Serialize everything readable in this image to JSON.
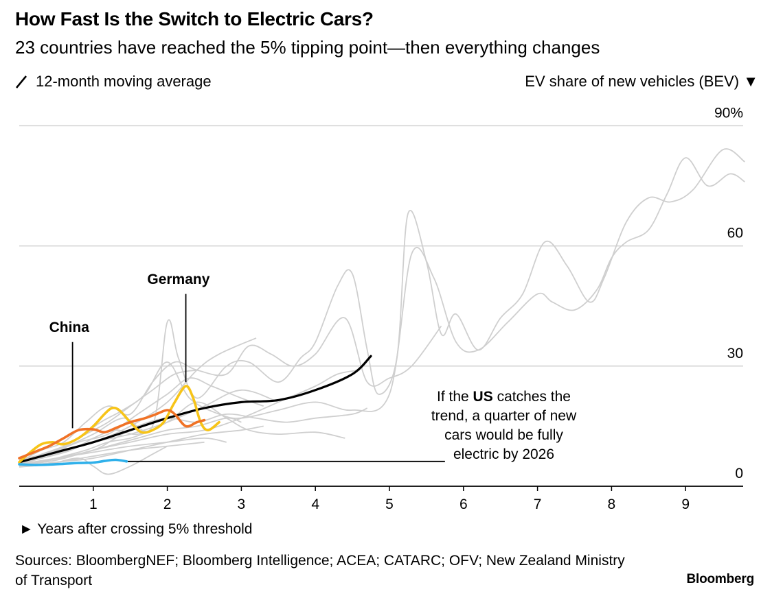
{
  "title": "How Fast Is the Switch to Electric Cars?",
  "subtitle": "23 countries have reached the 5% tipping point—then everything changes",
  "legend_note": "12-month moving average",
  "sources": "Sources: BloombergNEF; Bloomberg Intelligence; ACEA; CATARC; OFV; New Zealand Ministry of Transport",
  "brand": "Bloomberg",
  "annotation": {
    "line1_pre": "If the ",
    "line1_bold": "US",
    "line1_post": " catches the",
    "line2": "trend, a quarter of new",
    "line3": "cars would be fully",
    "line4": "electric by 2026"
  },
  "colors": {
    "background": "#ffffff",
    "grid": "#d0d0d0",
    "other_countries": "#cfcfcf",
    "average": "#000000",
    "china": "#f07226",
    "germany": "#f7c418",
    "us": "#2fb0ea"
  },
  "chart_data": {
    "type": "line",
    "title": "How Fast Is the Switch to Electric Cars?",
    "subtitle": "23 countries have reached the 5% tipping point—then everything changes",
    "xlabel": "► Years after crossing 5% threshold",
    "ylabel": "EV share of new vehicles (BEV) ▼",
    "xlim": [
      0,
      9.8
    ],
    "ylim": [
      0,
      90
    ],
    "x_ticks": [
      1,
      2,
      3,
      4,
      5,
      6,
      7,
      8,
      9
    ],
    "y_ticks": [
      {
        "value": 90,
        "label": "90%"
      },
      {
        "value": 60,
        "label": "60"
      },
      {
        "value": 30,
        "label": "30"
      },
      {
        "value": 0,
        "label": "0"
      }
    ],
    "grid": "horizontal",
    "series": [
      {
        "name": "China",
        "role": "highlight",
        "color": "#f07226",
        "label_pos": [
          0.72,
          39.5
        ],
        "leader_from": [
          0.72,
          36
        ],
        "leader_to": [
          0.72,
          14.5
        ],
        "points": [
          [
            0,
            7
          ],
          [
            0.2,
            8.5
          ],
          [
            0.4,
            10
          ],
          [
            0.6,
            12
          ],
          [
            0.8,
            14
          ],
          [
            1,
            14.2
          ],
          [
            1.15,
            13.5
          ],
          [
            1.3,
            14.5
          ],
          [
            1.5,
            16
          ],
          [
            1.7,
            17
          ],
          [
            1.85,
            18
          ],
          [
            2,
            19
          ],
          [
            2.1,
            18
          ],
          [
            2.25,
            15
          ],
          [
            2.4,
            16
          ],
          [
            2.5,
            16.5
          ]
        ]
      },
      {
        "name": "Germany",
        "role": "highlight",
        "color": "#f7c418",
        "label_pos": [
          2.1,
          51.5
        ],
        "leader_from": [
          2.25,
          48
        ],
        "leader_to": [
          2.25,
          26
        ],
        "points": [
          [
            0,
            6
          ],
          [
            0.15,
            8.5
          ],
          [
            0.3,
            10.5
          ],
          [
            0.45,
            11
          ],
          [
            0.6,
            10.5
          ],
          [
            0.8,
            12
          ],
          [
            1,
            15
          ],
          [
            1.15,
            18
          ],
          [
            1.25,
            19.5
          ],
          [
            1.35,
            19
          ],
          [
            1.5,
            16
          ],
          [
            1.65,
            13.5
          ],
          [
            1.8,
            14
          ],
          [
            1.95,
            16
          ],
          [
            2.1,
            21
          ],
          [
            2.25,
            25
          ],
          [
            2.35,
            22
          ],
          [
            2.45,
            16
          ],
          [
            2.55,
            14
          ],
          [
            2.7,
            16
          ]
        ]
      },
      {
        "name": "US",
        "role": "highlight",
        "color": "#2fb0ea",
        "leader_from": [
          1.45,
          6.2
        ],
        "leader_to": [
          5.75,
          6.2
        ],
        "points": [
          [
            0,
            5.5
          ],
          [
            0.2,
            5.3
          ],
          [
            0.4,
            5.4
          ],
          [
            0.6,
            5.6
          ],
          [
            0.8,
            5.8
          ],
          [
            1,
            5.9
          ],
          [
            1.15,
            6.3
          ],
          [
            1.3,
            6.6
          ],
          [
            1.45,
            6.2
          ]
        ]
      },
      {
        "name": "Average",
        "role": "average",
        "color": "#000000",
        "points": [
          [
            0,
            6
          ],
          [
            0.5,
            8.5
          ],
          [
            1,
            11
          ],
          [
            1.5,
            14
          ],
          [
            2,
            17
          ],
          [
            2.5,
            19.5
          ],
          [
            3,
            21
          ],
          [
            3.5,
            21.5
          ],
          [
            4,
            24
          ],
          [
            4.5,
            28
          ],
          [
            4.75,
            32.5
          ]
        ]
      },
      {
        "role": "other",
        "points": [
          [
            0,
            5.5
          ],
          [
            0.5,
            8.5
          ],
          [
            1,
            11
          ],
          [
            1.5,
            15
          ],
          [
            2,
            21
          ],
          [
            2.4,
            29
          ],
          [
            2.7,
            33
          ],
          [
            3.2,
            37
          ]
        ]
      },
      {
        "role": "other",
        "points": [
          [
            0,
            6
          ],
          [
            0.3,
            9
          ],
          [
            0.6,
            11
          ],
          [
            0.9,
            16
          ],
          [
            1.2,
            20
          ],
          [
            1.5,
            18
          ],
          [
            1.8,
            26
          ],
          [
            2.1,
            31
          ],
          [
            2.4,
            29
          ],
          [
            2.8,
            28
          ],
          [
            3.1,
            35
          ],
          [
            3.4,
            33
          ],
          [
            3.7,
            30
          ],
          [
            4,
            33
          ],
          [
            4.4,
            42
          ],
          [
            4.7,
            26
          ],
          [
            5,
            27
          ],
          [
            5.3,
            30
          ],
          [
            5.7,
            40
          ]
        ]
      },
      {
        "role": "other",
        "points": [
          [
            0,
            5.5
          ],
          [
            0.4,
            8
          ],
          [
            0.8,
            12
          ],
          [
            1.1,
            16
          ],
          [
            1.4,
            19
          ],
          [
            1.7,
            23
          ],
          [
            2,
            31
          ],
          [
            2.3,
            22
          ],
          [
            2.7,
            18
          ],
          [
            3,
            17
          ],
          [
            3.5,
            19
          ],
          [
            4,
            21
          ],
          [
            4.5,
            19
          ],
          [
            5,
            23
          ],
          [
            5.3,
            58
          ],
          [
            5.6,
            52
          ],
          [
            5.9,
            36
          ],
          [
            6.2,
            34
          ],
          [
            6.6,
            41
          ],
          [
            7,
            48
          ],
          [
            7.2,
            46
          ],
          [
            7.5,
            44
          ],
          [
            7.8,
            49
          ],
          [
            8,
            57
          ],
          [
            8.2,
            61
          ],
          [
            8.5,
            64
          ],
          [
            8.75,
            73
          ],
          [
            9,
            82
          ],
          [
            9.3,
            75
          ],
          [
            9.6,
            78
          ],
          [
            9.8,
            76
          ]
        ]
      },
      {
        "role": "other",
        "points": [
          [
            0,
            6.5
          ],
          [
            0.5,
            9
          ],
          [
            1,
            13
          ],
          [
            1.4,
            17
          ],
          [
            1.8,
            15
          ],
          [
            2,
            41
          ],
          [
            2.15,
            32
          ],
          [
            2.4,
            22
          ],
          [
            2.8,
            30
          ],
          [
            3.1,
            31
          ],
          [
            3.5,
            26
          ],
          [
            3.8,
            32
          ],
          [
            4,
            36
          ],
          [
            4.3,
            50
          ],
          [
            4.5,
            53
          ],
          [
            4.7,
            34
          ],
          [
            4.85,
            23
          ],
          [
            5.1,
            32
          ],
          [
            5.25,
            68
          ],
          [
            5.5,
            56
          ],
          [
            5.7,
            38
          ],
          [
            5.9,
            43
          ],
          [
            6.2,
            34
          ],
          [
            6.5,
            42
          ],
          [
            6.8,
            48
          ],
          [
            7.1,
            61
          ],
          [
            7.4,
            55
          ],
          [
            7.7,
            46
          ],
          [
            7.9,
            52
          ],
          [
            8.2,
            66
          ],
          [
            8.5,
            72
          ],
          [
            8.8,
            71
          ],
          [
            9.1,
            74
          ],
          [
            9.5,
            84
          ],
          [
            9.8,
            81
          ]
        ]
      },
      {
        "role": "other",
        "points": [
          [
            0,
            5.2
          ],
          [
            0.5,
            7
          ],
          [
            1,
            9
          ],
          [
            1.3,
            12
          ],
          [
            1.6,
            15
          ],
          [
            2,
            17
          ],
          [
            2.4,
            16
          ],
          [
            2.8,
            18
          ],
          [
            3.2,
            17
          ],
          [
            3.6,
            16
          ],
          [
            4,
            17
          ],
          [
            4.5,
            18
          ],
          [
            4.7,
            19.5
          ]
        ]
      },
      {
        "role": "other",
        "points": [
          [
            0,
            5.5
          ],
          [
            0.4,
            6.5
          ],
          [
            0.8,
            8
          ],
          [
            1.2,
            10
          ],
          [
            1.6,
            12
          ],
          [
            2,
            14
          ],
          [
            2.4,
            15
          ],
          [
            2.8,
            17
          ],
          [
            3,
            16
          ]
        ]
      },
      {
        "role": "other",
        "points": [
          [
            0,
            6
          ],
          [
            0.3,
            7
          ],
          [
            0.7,
            9
          ],
          [
            1,
            12
          ],
          [
            1.3,
            14
          ],
          [
            1.6,
            13
          ],
          [
            2,
            16
          ],
          [
            2.4,
            21
          ],
          [
            2.8,
            17
          ],
          [
            3.1,
            14
          ],
          [
            3.5,
            13
          ],
          [
            4,
            13.5
          ],
          [
            4.4,
            12
          ]
        ]
      },
      {
        "role": "other",
        "points": [
          [
            0,
            5.5
          ],
          [
            0.5,
            7
          ],
          [
            1,
            8.5
          ],
          [
            1.5,
            10
          ],
          [
            2,
            11
          ],
          [
            2.5,
            12
          ],
          [
            2.8,
            11
          ]
        ]
      },
      {
        "role": "other",
        "points": [
          [
            0,
            5
          ],
          [
            0.5,
            6
          ],
          [
            1,
            7.5
          ],
          [
            1.5,
            9
          ],
          [
            2,
            10
          ],
          [
            2.5,
            11
          ]
        ]
      },
      {
        "role": "other",
        "points": [
          [
            0,
            6
          ],
          [
            0.4,
            8
          ],
          [
            0.8,
            11
          ],
          [
            1.2,
            13
          ],
          [
            1.6,
            18
          ],
          [
            2,
            23
          ],
          [
            2.3,
            27
          ],
          [
            2.6,
            25
          ],
          [
            3,
            22
          ],
          [
            3.3,
            20
          ]
        ]
      },
      {
        "role": "other",
        "points": [
          [
            0,
            5.5
          ],
          [
            0.5,
            8
          ],
          [
            1,
            11
          ],
          [
            1.5,
            13
          ],
          [
            2,
            16
          ],
          [
            2.5,
            20
          ],
          [
            3,
            24
          ],
          [
            3.5,
            21
          ]
        ]
      },
      {
        "role": "other",
        "points": [
          [
            0,
            5
          ],
          [
            0.3,
            6
          ],
          [
            0.6,
            7.5
          ],
          [
            0.9,
            9
          ],
          [
            1.2,
            11
          ],
          [
            1.5,
            12
          ],
          [
            1.8,
            14
          ]
        ]
      },
      {
        "role": "other",
        "points": [
          [
            0,
            4.8
          ],
          [
            0.4,
            5.5
          ],
          [
            0.8,
            7
          ],
          [
            1,
            5
          ],
          [
            1.2,
            3
          ],
          [
            1.5,
            5
          ],
          [
            1.8,
            8
          ],
          [
            2,
            10
          ]
        ]
      },
      {
        "role": "other",
        "points": [
          [
            0,
            6
          ],
          [
            0.3,
            8
          ],
          [
            0.6,
            10
          ],
          [
            0.9,
            13
          ],
          [
            1.2,
            16
          ],
          [
            1.5,
            20
          ],
          [
            1.8,
            24
          ],
          [
            2.1,
            28
          ],
          [
            2.4,
            29
          ]
        ]
      },
      {
        "role": "other",
        "points": [
          [
            0,
            5
          ],
          [
            0.5,
            6
          ],
          [
            1,
            7
          ],
          [
            1.5,
            9
          ],
          [
            2,
            11
          ],
          [
            2.5,
            13
          ],
          [
            3,
            14
          ],
          [
            3.3,
            15
          ]
        ]
      },
      {
        "role": "other",
        "points": [
          [
            0,
            5.3
          ],
          [
            0.5,
            6.5
          ],
          [
            1,
            9
          ],
          [
            1.5,
            11
          ],
          [
            2,
            13
          ],
          [
            2.5,
            14
          ],
          [
            3,
            17
          ],
          [
            3.5,
            21
          ],
          [
            4,
            25
          ],
          [
            4.3,
            28
          ],
          [
            4.6,
            29
          ]
        ]
      }
    ]
  }
}
